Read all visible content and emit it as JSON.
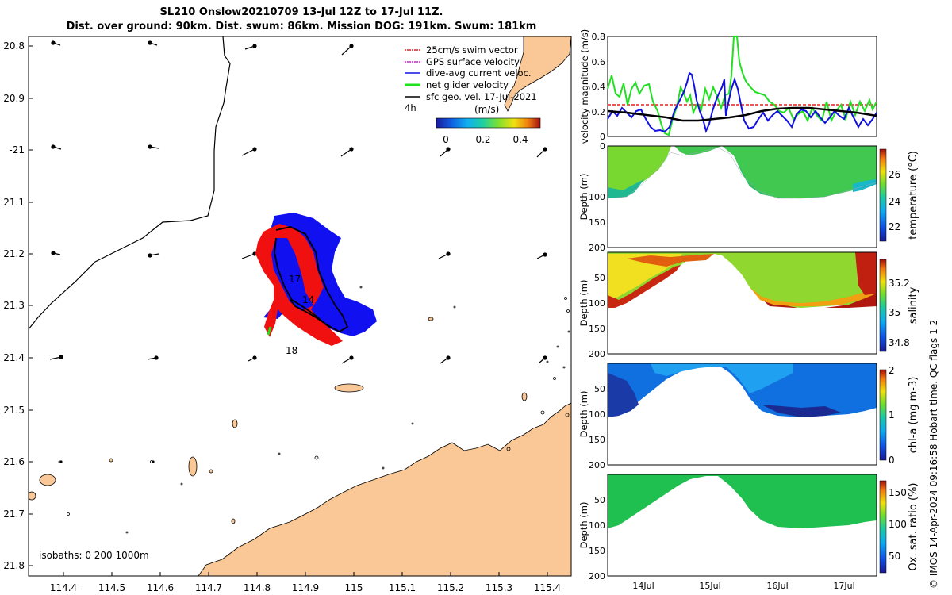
{
  "title": {
    "line1": "SL210 Onslow20210709 13-Jul 12Z to 17-Jul 11Z.",
    "line2": "Dist. over ground: 90km. Dist. swum: 86km. Mission DOG: 191km. Swum: 181km"
  },
  "map": {
    "lat_ticks": [
      "20.8",
      "20.9",
      "-21",
      "21.1",
      "21.2",
      "21.3",
      "21.4",
      "21.5",
      "21.6",
      "21.7",
      "21.8"
    ],
    "lon_ticks": [
      "114.4",
      "114.5",
      "114.6",
      "114.7",
      "114.8",
      "114.9",
      "115",
      "115.1",
      "115.2",
      "115.3",
      "115.4"
    ],
    "legend": [
      {
        "label": "25cm/s swim vector",
        "color": "#e02020"
      },
      {
        "label": "GPS surface velocity",
        "color": "#d020d0"
      },
      {
        "label": "dive-avg current veloc.",
        "color": "#1010e0"
      },
      {
        "label": "net glider velocity",
        "color": "#20e020"
      },
      {
        "label": "sfc geo. vel. 17-Jul-2021",
        "color": "#000000"
      }
    ],
    "scale_time": "4h",
    "colorbar": {
      "unit": "(m/s)",
      "ticks": [
        "0",
        "0.2",
        "0.4"
      ]
    },
    "day_labels": [
      "17",
      "14",
      "18"
    ],
    "isobaths": "isobaths: 0   200  1000m",
    "land_color": "#f9c896",
    "blue_fill": "#1010f0",
    "red_fill": "#f01010"
  },
  "velocity_panel": {
    "ylabel": "velocity magnitude (m/s)",
    "yticks": [
      "0",
      "0.2",
      "0.4",
      "0.6",
      "0.8"
    ]
  },
  "sections": [
    {
      "ylabel": "Depth (m)",
      "cbar_label": "temperature (°C)",
      "cbar_ticks": [
        "22",
        "24",
        "26"
      ]
    },
    {
      "ylabel": "Depth (m)",
      "cbar_label": "salinity",
      "cbar_ticks": [
        "34.8",
        "35",
        "35.2"
      ]
    },
    {
      "ylabel": "Depth (m)",
      "cbar_label": "chl-a (mg m-3)",
      "cbar_ticks": [
        "0",
        "1",
        "2"
      ]
    },
    {
      "ylabel": "Depth (m)",
      "cbar_label": "Ox. sat. ratio (%)",
      "cbar_ticks": [
        "50",
        "100",
        "150"
      ]
    }
  ],
  "depth_ticks": [
    "0",
    "50",
    "100",
    "150",
    "200"
  ],
  "time_ticks": [
    "14Jul",
    "15Jul",
    "16Jul",
    "17Jul"
  ],
  "credit": "© IMOS 14-Apr-2024 09:16:58 Hobart time. QC flags 1  2"
}
